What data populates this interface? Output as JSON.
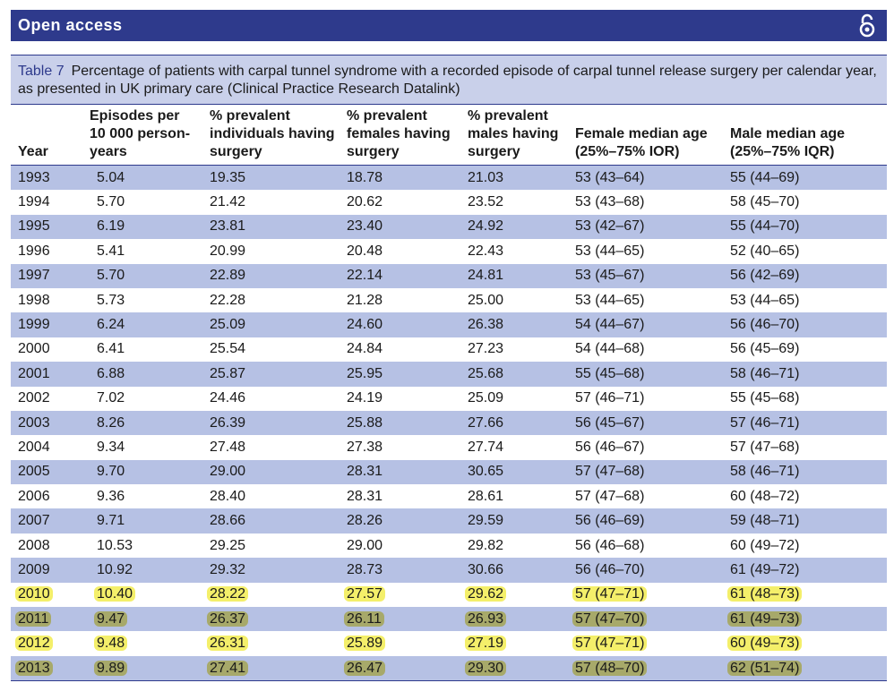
{
  "header": {
    "title": "Open access"
  },
  "caption": {
    "label": "Table 7",
    "text": "Percentage of patients with carpal tunnel syndrome with a recorded episode of carpal tunnel release surgery per calendar year, as presented in UK primary care (Clinical Practice Research Datalink)"
  },
  "table": {
    "columns": [
      "Year",
      "Episodes per 10 000 person-years",
      "% prevalent individuals having surgery",
      "% prevalent females having surgery",
      "% prevalent males having surgery",
      "Female median age (25%–75% IOR)",
      "Male median age (25%–75% IQR)"
    ],
    "rows": [
      [
        "1993",
        "5.04",
        "19.35",
        "18.78",
        "21.03",
        "53 (43–64)",
        "55 (44–69)"
      ],
      [
        "1994",
        "5.70",
        "21.42",
        "20.62",
        "23.52",
        "53 (43–68)",
        "58 (45–70)"
      ],
      [
        "1995",
        "6.19",
        "23.81",
        "23.40",
        "24.92",
        "53 (42–67)",
        "55 (44–70)"
      ],
      [
        "1996",
        "5.41",
        "20.99",
        "20.48",
        "22.43",
        "53 (44–65)",
        "52 (40–65)"
      ],
      [
        "1997",
        "5.70",
        "22.89",
        "22.14",
        "24.81",
        "53 (45–67)",
        "56 (42–69)"
      ],
      [
        "1998",
        "5.73",
        "22.28",
        "21.28",
        "25.00",
        "53 (44–65)",
        "53 (44–65)"
      ],
      [
        "1999",
        "6.24",
        "25.09",
        "24.60",
        "26.38",
        "54 (44–67)",
        "56 (46–70)"
      ],
      [
        "2000",
        "6.41",
        "25.54",
        "24.84",
        "27.23",
        "54 (44–68)",
        "56 (45–69)"
      ],
      [
        "2001",
        "6.88",
        "25.87",
        "25.95",
        "25.68",
        "55 (45–68)",
        "58 (46–71)"
      ],
      [
        "2002",
        "7.02",
        "24.46",
        "24.19",
        "25.09",
        "57 (46–71)",
        "55 (45–68)"
      ],
      [
        "2003",
        "8.26",
        "26.39",
        "25.88",
        "27.66",
        "56 (45–67)",
        "57 (46–71)"
      ],
      [
        "2004",
        "9.34",
        "27.48",
        "27.38",
        "27.74",
        "56 (46–67)",
        "57 (47–68)"
      ],
      [
        "2005",
        "9.70",
        "29.00",
        "28.31",
        "30.65",
        "57 (47–68)",
        "58 (46–71)"
      ],
      [
        "2006",
        "9.36",
        "28.40",
        "28.31",
        "28.61",
        "57 (47–68)",
        "60 (48–72)"
      ],
      [
        "2007",
        "9.71",
        "28.66",
        "28.26",
        "29.59",
        "56 (46–69)",
        "59 (48–71)"
      ],
      [
        "2008",
        "10.53",
        "29.25",
        "29.00",
        "29.82",
        "56 (46–68)",
        "60 (49–72)"
      ],
      [
        "2009",
        "10.92",
        "29.32",
        "28.73",
        "30.66",
        "56 (46–70)",
        "61 (49–72)"
      ],
      [
        "2010",
        "10.40",
        "28.22",
        "27.57",
        "29.62",
        "57 (47–71)",
        "61 (48–73)"
      ],
      [
        "2011",
        "9.47",
        "26.37",
        "26.11",
        "26.93",
        "57 (47–70)",
        "61 (49–73)"
      ],
      [
        "2012",
        "9.48",
        "26.31",
        "25.89",
        "27.19",
        "57 (47–71)",
        "60 (49–73)"
      ],
      [
        "2013",
        "9.89",
        "27.41",
        "26.47",
        "29.30",
        "57 (48–70)",
        "62 (51–74)"
      ]
    ]
  }
}
